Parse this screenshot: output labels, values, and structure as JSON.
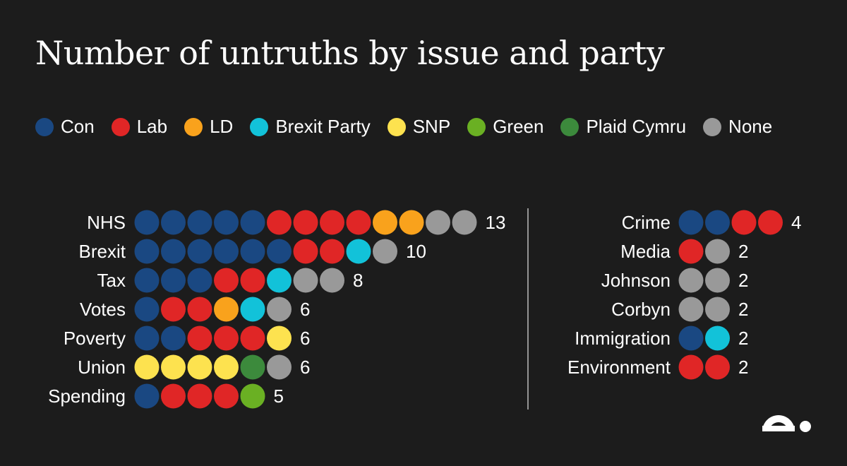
{
  "chart_data": {
    "type": "dot",
    "title": "Number of untruths by issue and party",
    "legend": [
      {
        "name": "Con",
        "color": "#1a4882"
      },
      {
        "name": "Lab",
        "color": "#e02626"
      },
      {
        "name": "LD",
        "color": "#f9a21c"
      },
      {
        "name": "Brexit Party",
        "color": "#12c2d9"
      },
      {
        "name": "SNP",
        "color": "#fde24f"
      },
      {
        "name": "Green",
        "color": "#6ab023"
      },
      {
        "name": "Plaid Cymru",
        "color": "#3c8a3c"
      },
      {
        "name": "None",
        "color": "#999999"
      }
    ],
    "panels": [
      {
        "rows": [
          {
            "issue": "NHS",
            "total": 13,
            "dots": [
              "Con",
              "Con",
              "Con",
              "Con",
              "Con",
              "Lab",
              "Lab",
              "Lab",
              "Lab",
              "LD",
              "LD",
              "None",
              "None"
            ]
          },
          {
            "issue": "Brexit",
            "total": 10,
            "dots": [
              "Con",
              "Con",
              "Con",
              "Con",
              "Con",
              "Con",
              "Lab",
              "Lab",
              "Brexit Party",
              "None"
            ]
          },
          {
            "issue": "Tax",
            "total": 8,
            "dots": [
              "Con",
              "Con",
              "Con",
              "Lab",
              "Lab",
              "Brexit Party",
              "None",
              "None"
            ]
          },
          {
            "issue": "Votes",
            "total": 6,
            "dots": [
              "Con",
              "Lab",
              "Lab",
              "LD",
              "Brexit Party",
              "None"
            ]
          },
          {
            "issue": "Poverty",
            "total": 6,
            "dots": [
              "Con",
              "Con",
              "Lab",
              "Lab",
              "Lab",
              "SNP"
            ]
          },
          {
            "issue": "Union",
            "total": 6,
            "dots": [
              "SNP",
              "SNP",
              "SNP",
              "SNP",
              "Plaid Cymru",
              "None"
            ]
          },
          {
            "issue": "Spending",
            "total": 5,
            "dots": [
              "Con",
              "Lab",
              "Lab",
              "Lab",
              "Green"
            ]
          }
        ]
      },
      {
        "rows": [
          {
            "issue": "Crime",
            "total": 4,
            "dots": [
              "Con",
              "Con",
              "Lab",
              "Lab"
            ]
          },
          {
            "issue": "Media",
            "total": 2,
            "dots": [
              "Lab",
              "None"
            ]
          },
          {
            "issue": "Johnson",
            "total": 2,
            "dots": [
              "None",
              "None"
            ]
          },
          {
            "issue": "Corbyn",
            "total": 2,
            "dots": [
              "None",
              "None"
            ]
          },
          {
            "issue": "Immigration",
            "total": 2,
            "dots": [
              "Con",
              "Brexit Party"
            ]
          },
          {
            "issue": "Environment",
            "total": 2,
            "dots": [
              "Lab",
              "Lab"
            ]
          }
        ]
      }
    ]
  },
  "colors": {
    "background": "#1c1c1c",
    "text": "#ffffff",
    "divider": "#bbbbbb"
  },
  "logo": {
    "icon": "publisher-logo-icon"
  }
}
